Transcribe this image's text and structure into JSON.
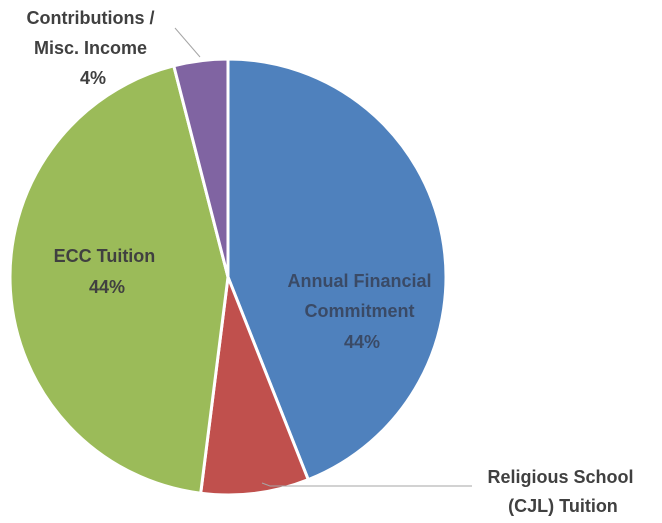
{
  "chart_data": {
    "type": "pie",
    "title": "",
    "slices": [
      {
        "label_lines": [
          "Annual Financial",
          "Commitment"
        ],
        "value_label": "44%",
        "value": 44,
        "color": "#4f81bd"
      },
      {
        "label_lines": [
          "Religious School",
          "(CJL) Tuition"
        ],
        "value_label": "",
        "value": 8,
        "color": "#c0504d"
      },
      {
        "label_lines": [
          "ECC Tuition"
        ],
        "value_label": "44%",
        "value": 44,
        "color": "#9bbb59"
      },
      {
        "label_lines": [
          "Contributions /",
          "Misc. Income"
        ],
        "value_label": "4%",
        "value": 4,
        "color": "#8064a2"
      }
    ]
  }
}
